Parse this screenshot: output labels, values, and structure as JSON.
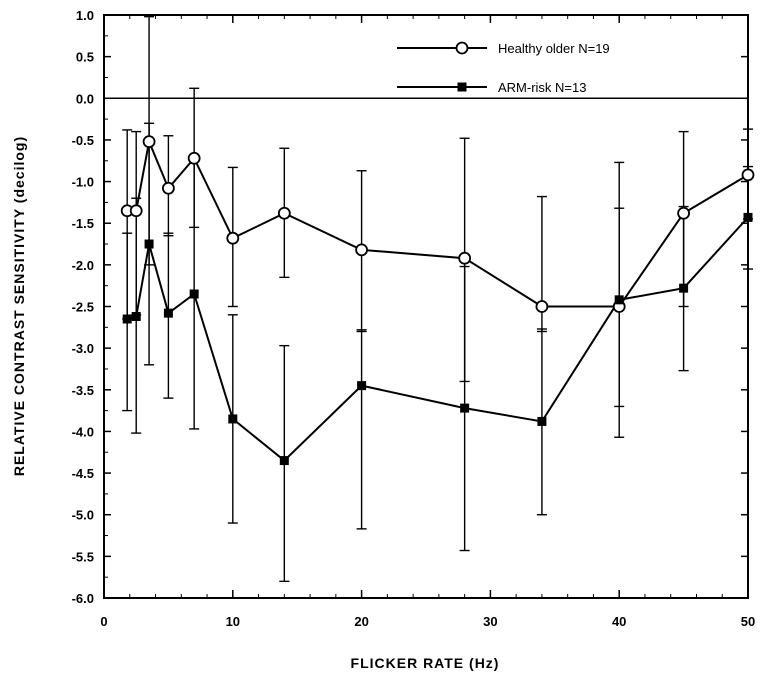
{
  "chart_data": {
    "type": "line",
    "xlabel": "FLICKER  RATE  (Hz)",
    "ylabel": "RELATIVE  CONTRAST  SENSITIVITY  (decilog)",
    "xlim": [
      0,
      50
    ],
    "ylim": [
      -6.0,
      1.0
    ],
    "x_ticks": [
      "0",
      "10",
      "20",
      "30",
      "40",
      "50"
    ],
    "y_ticks": [
      "1.0",
      "0.5",
      "0.0",
      "-0.5",
      "-1.0",
      "-1.5",
      "-2.0",
      "-2.5",
      "-3.0",
      "-3.5",
      "-4.0",
      "-4.5",
      "-5.0",
      "-5.5",
      "-6.0"
    ],
    "reference_line_y": 0.0,
    "legend_position": "top-right",
    "series": [
      {
        "name": "Healthy older  N=19",
        "marker": "open-circle",
        "x": [
          1.8,
          2.5,
          3.5,
          5,
          7,
          10,
          14,
          20,
          28,
          34,
          40,
          45,
          50
        ],
        "y": [
          -1.35,
          -1.35,
          -0.52,
          -1.08,
          -0.72,
          -1.68,
          -1.38,
          -1.82,
          -1.92,
          -2.5,
          -2.5,
          -1.38,
          -0.92
        ],
        "err_low": [
          -2.65,
          -2.6,
          -2.0,
          -1.65,
          -1.55,
          -2.5,
          -2.15,
          -2.8,
          -3.4,
          -2.8,
          -3.7,
          -2.5,
          -1.45
        ],
        "err_high": [
          -0.38,
          -0.4,
          0.98,
          -0.45,
          0.12,
          -0.83,
          -0.6,
          -0.87,
          -0.48,
          -1.18,
          -0.77,
          -0.4,
          -0.37
        ]
      },
      {
        "name": "ARM-risk  N=13",
        "marker": "filled-square",
        "x": [
          1.8,
          2.5,
          3.5,
          5,
          7,
          10,
          14,
          20,
          28,
          34,
          40,
          45,
          50
        ],
        "y": [
          -2.65,
          -2.62,
          -1.75,
          -2.58,
          -2.35,
          -3.85,
          -4.35,
          -3.45,
          -3.72,
          -3.88,
          -2.42,
          -2.28,
          -1.43
        ],
        "err_low": [
          -3.75,
          -4.02,
          -3.2,
          -3.6,
          -3.97,
          -5.1,
          -5.8,
          -5.17,
          -5.43,
          -5.0,
          -4.07,
          -3.27,
          -2.05
        ],
        "err_high": [
          -1.62,
          -1.2,
          -0.3,
          -1.62,
          -0.72,
          -2.6,
          -2.97,
          -2.78,
          -2.02,
          -2.77,
          -1.32,
          -1.3,
          -0.82
        ]
      }
    ]
  }
}
